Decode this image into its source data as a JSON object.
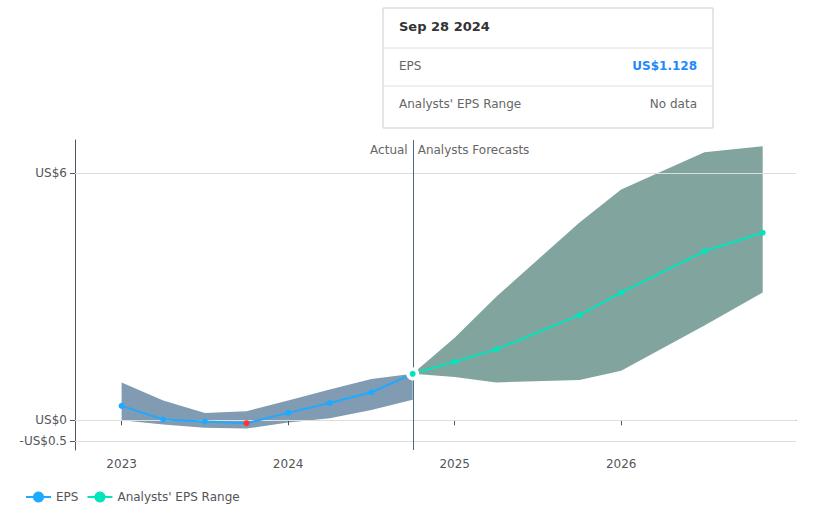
{
  "chart_data": {
    "type": "line",
    "series": [
      {
        "name": "EPS",
        "color": "#1eaaff",
        "x": [
          2023.0,
          2023.25,
          2023.5,
          2023.75,
          2024.0,
          2024.25,
          2024.5,
          2024.748
        ],
        "values": [
          0.35,
          0.02,
          -0.03,
          -0.07,
          0.18,
          0.42,
          0.68,
          1.128
        ],
        "colors": [
          "#1eaaff",
          "#1eaaff",
          "#1eaaff",
          "#ff3333",
          "#1eaaff",
          "#1eaaff",
          "#1eaaff",
          "#1eaaff"
        ],
        "band_lower": [
          0.0,
          -0.1,
          -0.18,
          -0.2,
          -0.05,
          0.05,
          0.25,
          0.5
        ],
        "band_upper": [
          0.92,
          0.48,
          0.18,
          0.22,
          0.48,
          0.75,
          1.0,
          1.128
        ],
        "band_color": "#1a4875"
      },
      {
        "name": "Analysts' EPS Range",
        "color": "#00e5bb",
        "x": [
          2024.748,
          2025.0,
          2025.25,
          2025.75,
          2026.0,
          2026.5,
          2026.85
        ],
        "values": [
          1.128,
          1.42,
          1.72,
          2.55,
          3.1,
          4.1,
          4.55
        ],
        "band_lower": [
          1.128,
          1.05,
          0.92,
          0.98,
          1.2,
          2.3,
          3.1
        ],
        "band_upper": [
          1.128,
          2.0,
          3.0,
          4.8,
          5.6,
          6.5,
          6.65
        ],
        "band_color": "#1a5a50"
      }
    ],
    "annotations": [
      {
        "text": "Actual",
        "x": 2024.748,
        "side": "left",
        "color": "#4a6a8a"
      },
      {
        "text": "Analysts Forecasts",
        "x": 2024.748,
        "side": "right",
        "color": "#4a6a8a"
      }
    ],
    "tooltip": {
      "title": "Sep 28 2024",
      "rows": [
        {
          "label": "EPS",
          "value": "US$1.128",
          "color": "#2288ff"
        },
        {
          "label": "Analysts' EPS Range",
          "value": "No data"
        }
      ]
    },
    "xlim": [
      2022.72,
      2027.05
    ],
    "xticks": [
      2023,
      2024,
      2025,
      2026
    ],
    "ylim": [
      -0.72,
      6.8
    ],
    "yticks": [
      {
        "value": -0.5,
        "label": "-US$0.5"
      },
      {
        "value": 0,
        "label": "US$0"
      },
      {
        "value": 6,
        "label": "US$6"
      }
    ],
    "grid": true,
    "legend": "bottom-left"
  }
}
